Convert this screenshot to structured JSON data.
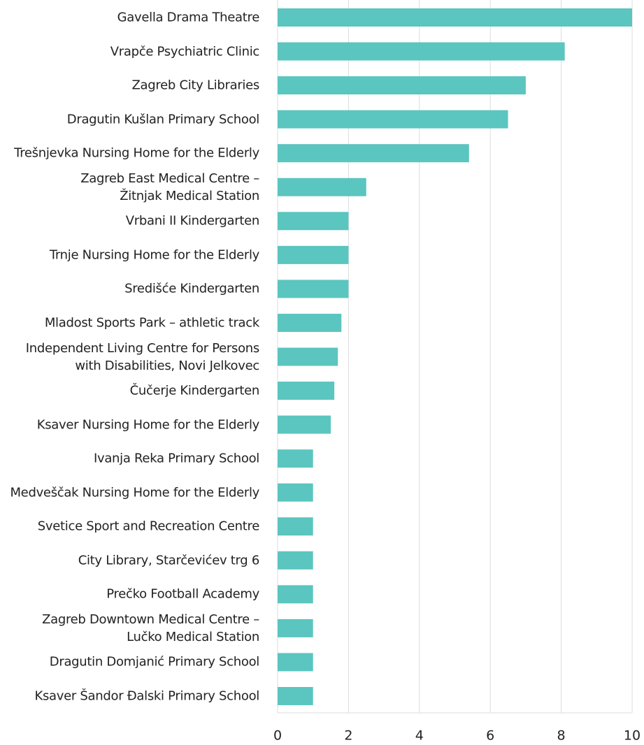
{
  "chart_data": {
    "type": "barh",
    "categories": [
      "Gavella Drama Theatre",
      "Vrapče Psychiatric Clinic",
      "Zagreb City Libraries",
      "Dragutin Kušlan Primary School",
      "Trešnjevka Nursing Home for the Elderly",
      "Zagreb East Medical Centre –\nŽitnjak Medical Station",
      "Vrbani II Kindergarten",
      "Trnje Nursing Home for the Elderly",
      "Središće Kindergarten",
      "Mladost Sports Park – athletic track",
      "Independent Living Centre for Persons\nwith Disabilities, Novi Jelkovec",
      "Čučerje Kindergarten",
      "Ksaver Nursing Home for the Elderly",
      "Ivanja Reka Primary School",
      "Medveščak Nursing Home for the Elderly",
      "Svetice Sport and Recreation Centre",
      "City Library, Starčevićev trg 6",
      "Prečko Football Academy",
      "Zagreb Downtown Medical Centre –\nLučko Medical Station",
      "Dragutin Domjanić Primary School",
      "Ksaver Šandor Đalski Primary School"
    ],
    "values": [
      10,
      8.1,
      7,
      6.5,
      5.4,
      2.5,
      2,
      2,
      2,
      1.8,
      1.7,
      1.6,
      1.5,
      1,
      1,
      1,
      1,
      1,
      1,
      1,
      1
    ],
    "color": "#5bc5bf",
    "xlim": [
      0,
      10
    ],
    "xticks": [
      0,
      2,
      4,
      6,
      8,
      10
    ],
    "grid": true
  }
}
